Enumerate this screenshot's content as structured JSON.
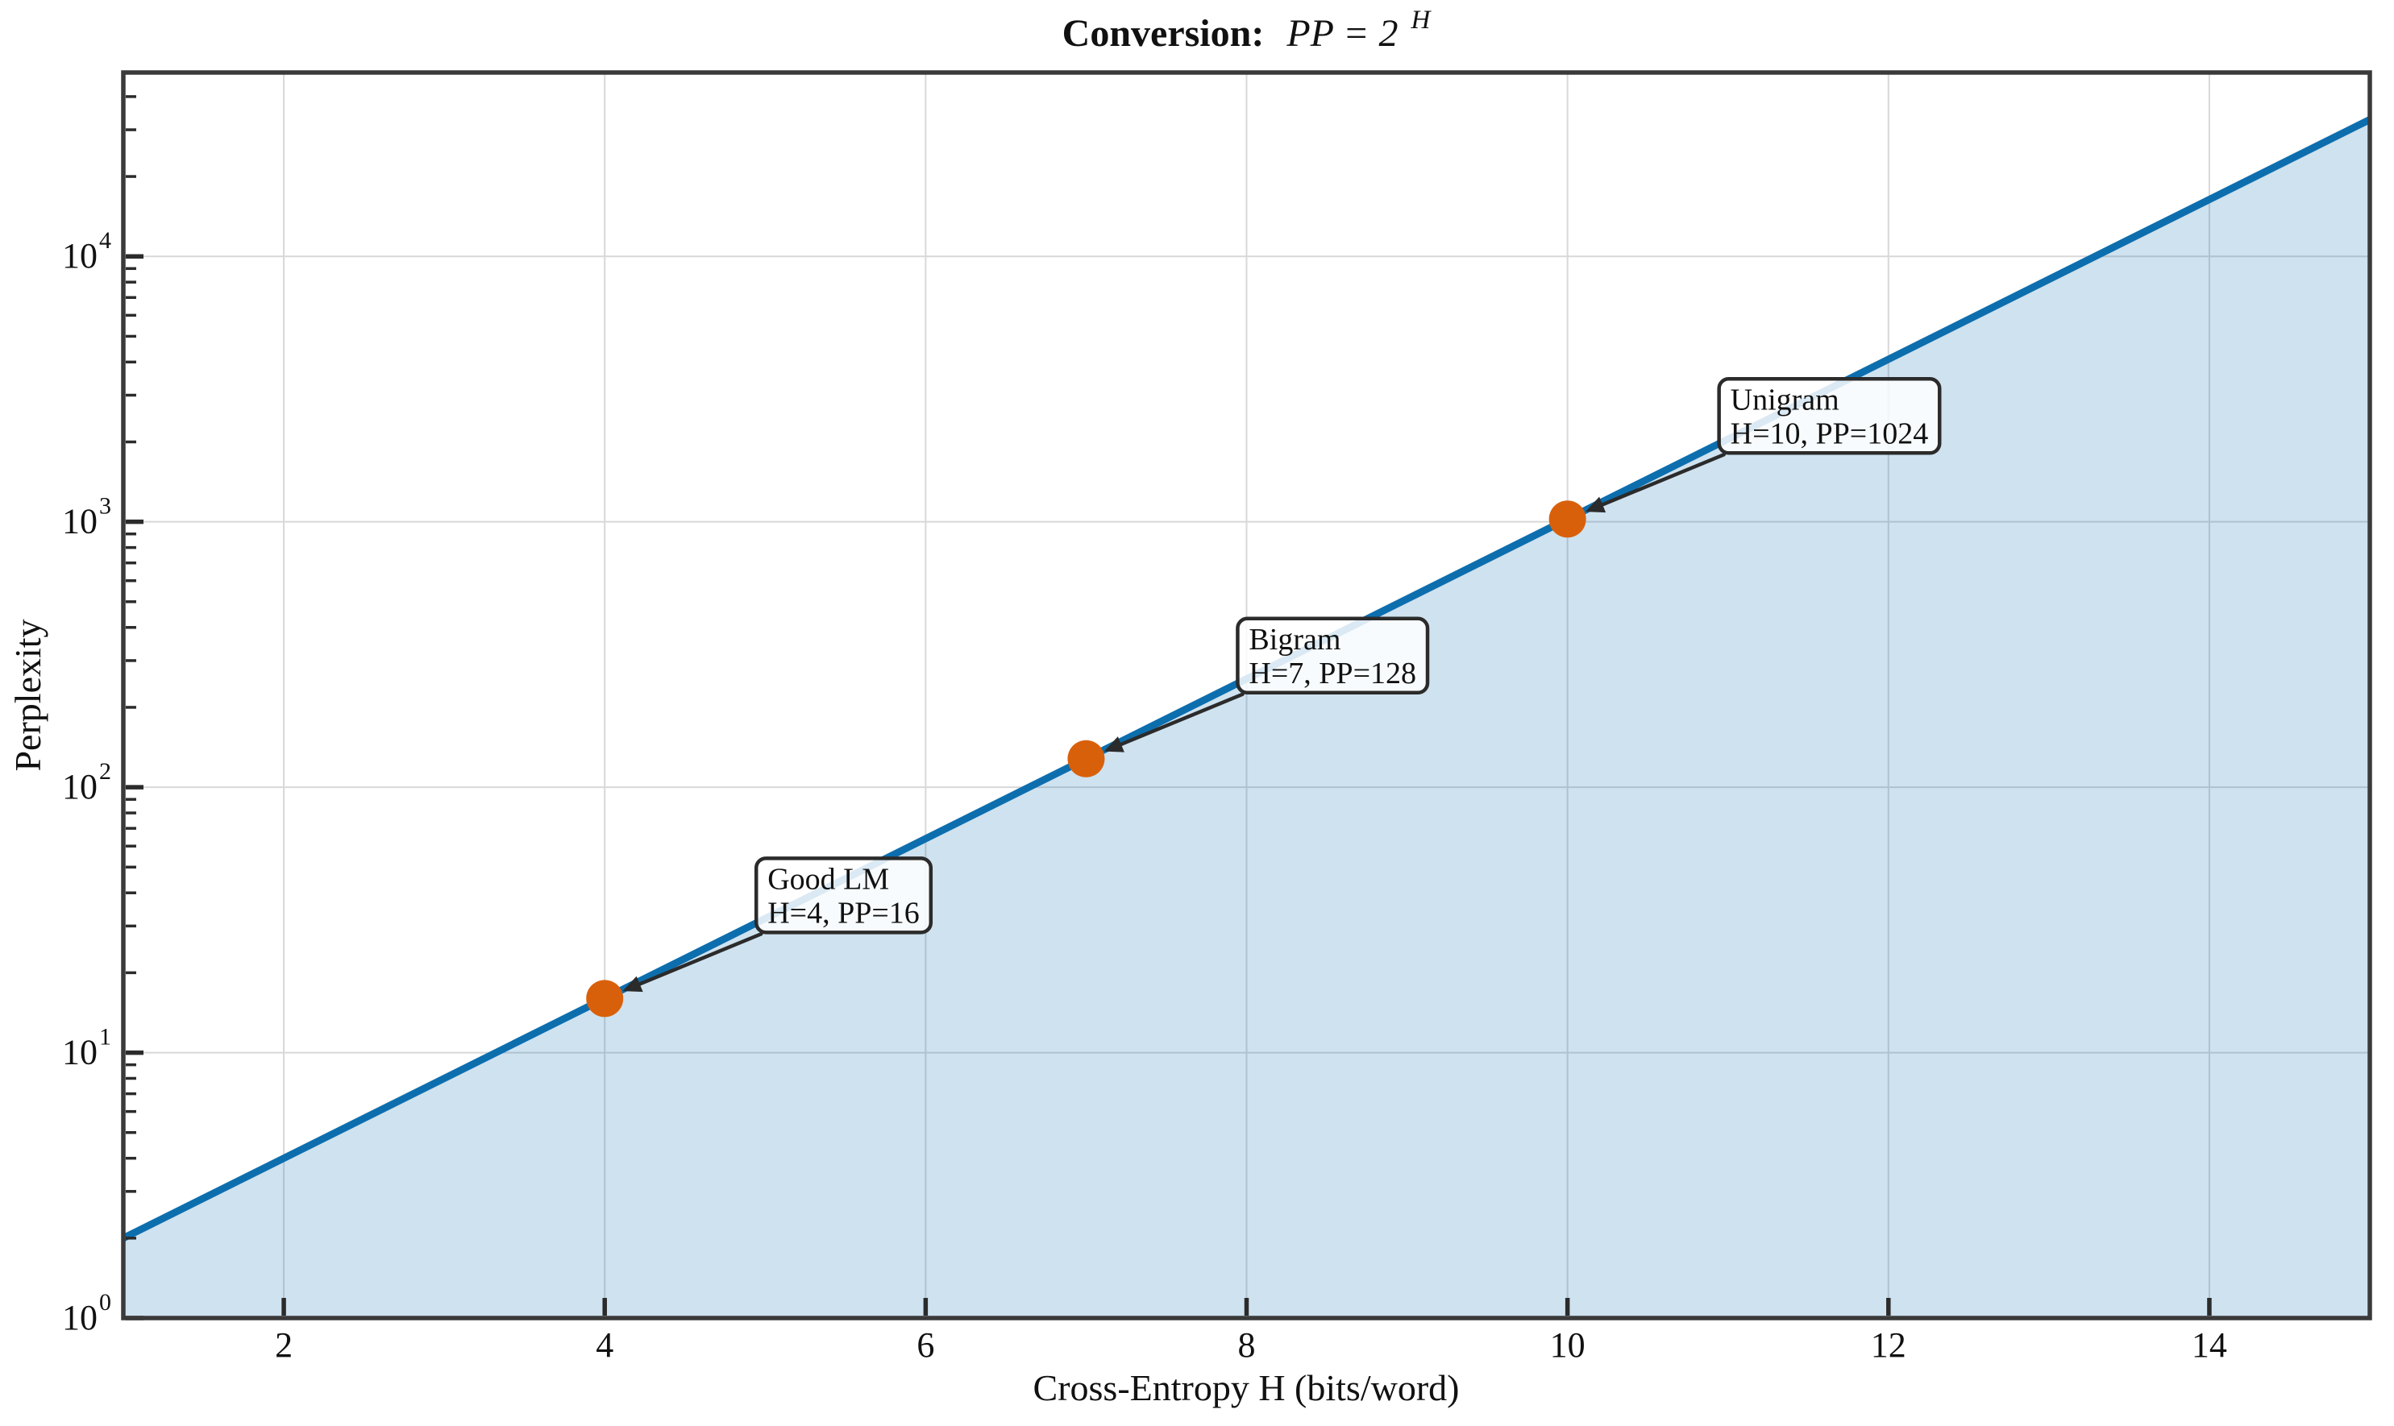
{
  "title": {
    "prefix": "Conversion:",
    "math": "PP = 2",
    "exponent": "H"
  },
  "chart_data": {
    "type": "line",
    "title": "Conversion: PP = 2^H",
    "xlabel": "Cross-Entropy H (bits/word)",
    "ylabel": "Perplexity",
    "x_scale": "linear",
    "y_scale": "log",
    "xlim": [
      1,
      15
    ],
    "ylim": [
      1,
      49300
    ],
    "grid": true,
    "x_ticks": [
      2,
      4,
      6,
      8,
      10,
      12,
      14
    ],
    "y_ticks": [
      1,
      10,
      100,
      1000,
      10000
    ],
    "y_tick_labels": [
      {
        "base": "10",
        "exp": "0"
      },
      {
        "base": "10",
        "exp": "1"
      },
      {
        "base": "10",
        "exp": "2"
      },
      {
        "base": "10",
        "exp": "3"
      },
      {
        "base": "10",
        "exp": "4"
      }
    ],
    "series": [
      {
        "name": "PP = 2^H",
        "relation": "PP = 2^H (straight line on log y-axis)",
        "x": [
          1,
          15
        ],
        "y": [
          2,
          32768
        ],
        "color": "#0d6eae",
        "line_width": 9,
        "fill_below": true,
        "fill_opacity": 0.2
      }
    ],
    "markers": {
      "color": "#d9600a",
      "radius": 23,
      "points": [
        {
          "x": 4,
          "y": 16
        },
        {
          "x": 7,
          "y": 128
        },
        {
          "x": 10,
          "y": 1024
        }
      ]
    },
    "annotations": [
      {
        "label": "Good LM",
        "detail": "H=4, PP=16",
        "x": 4,
        "y": 16
      },
      {
        "label": "Bigram",
        "detail": "H=7, PP=128",
        "x": 7,
        "y": 128
      },
      {
        "label": "Unigram",
        "detail": "H=10, PP=1024",
        "x": 10,
        "y": 1024
      }
    ]
  },
  "colors": {
    "line": "#0d6eae",
    "fill": "#0d6eae",
    "marker": "#d9600a",
    "grid": "#d8d8d8",
    "spine": "#3a3a3a",
    "tick": "#2b2b2b",
    "annotation_border": "#2b2b2b",
    "annotation_fill": "#ffffff",
    "text": "#111111",
    "background": "#ffffff"
  }
}
